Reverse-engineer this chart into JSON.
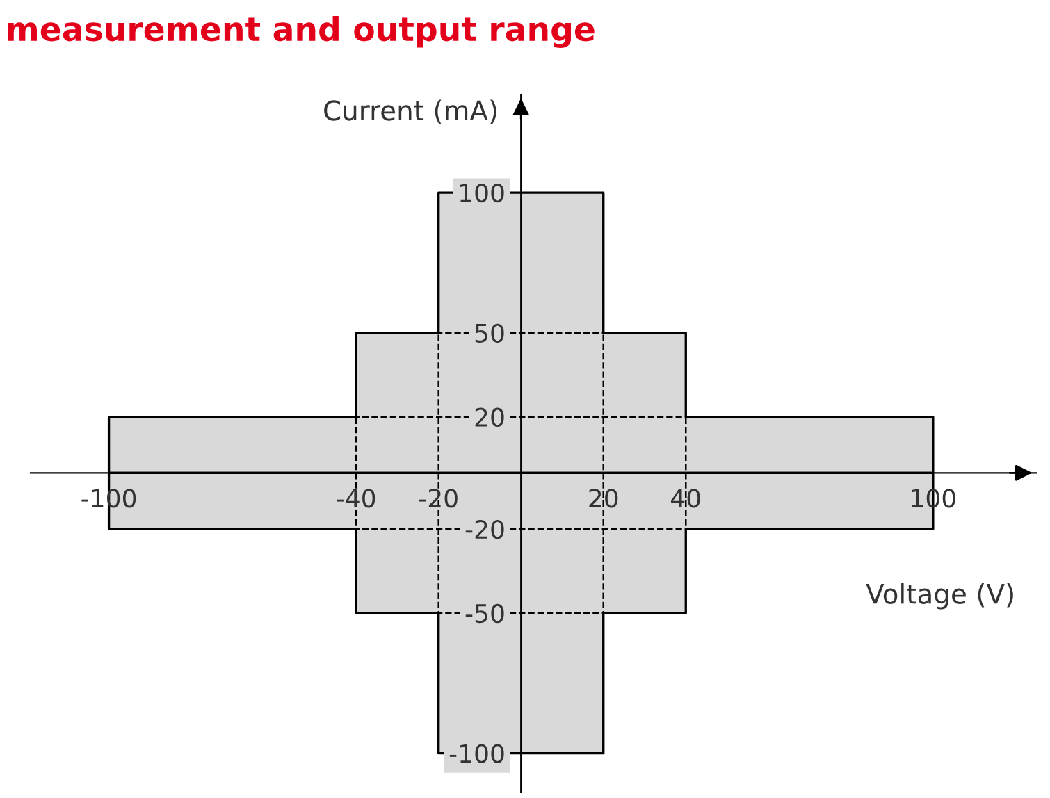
{
  "chart_data": {
    "type": "area",
    "title": "measurement and output range",
    "xlabel": "Voltage (V)",
    "ylabel": "Current (mA)",
    "series": [
      {
        "color": "#d9d9d9",
        "x": [
          -100,
          -40,
          -40,
          -20,
          -20,
          20,
          20,
          40,
          40,
          100
        ],
        "values": [
          20,
          20,
          50,
          50,
          100,
          100,
          50,
          50,
          20,
          20
        ]
      },
      {
        "color": "#d9d9d9",
        "x": [
          -100,
          -40,
          -40,
          -20,
          -20,
          20,
          20,
          40,
          40,
          100
        ],
        "values": [
          -20,
          -20,
          -50,
          -50,
          -100,
          -100,
          -50,
          -50,
          -20,
          -20
        ]
      }
    ],
    "ref_lines": [
      {
        "axis": "x",
        "value": -40,
        "line_style": "dashed"
      },
      {
        "axis": "x",
        "value": -20,
        "line_style": "dashed"
      },
      {
        "axis": "x",
        "value": 20,
        "line_style": "dashed"
      },
      {
        "axis": "x",
        "value": 40,
        "line_style": "dashed"
      },
      {
        "axis": "y",
        "value": 50,
        "line_style": "dashed"
      },
      {
        "axis": "y",
        "value": 20,
        "line_style": "dashed"
      },
      {
        "axis": "y",
        "value": -20,
        "line_style": "dashed"
      },
      {
        "axis": "y",
        "value": -50,
        "line_style": "dashed"
      }
    ],
    "xlim": [
      -119,
      125
    ],
    "ylim": [
      -114,
      135
    ],
    "xticks": [
      -100,
      -40,
      -20,
      20,
      40,
      100
    ],
    "yticks": [
      100,
      50,
      20,
      -20,
      -50,
      -100
    ],
    "grid": false,
    "legend": false
  }
}
